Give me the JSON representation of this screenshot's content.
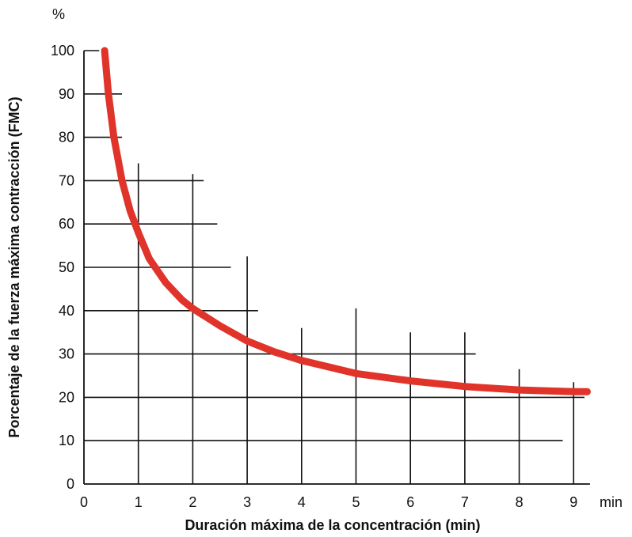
{
  "chart_data": {
    "type": "line",
    "xlabel": "Duración máxima de la concentración (min)",
    "ylabel": "Porcentaje de la fuerza máxima contracción (FMC)",
    "x_unit": "min",
    "y_unit": "%",
    "xlim": [
      0,
      9.3
    ],
    "ylim": [
      0,
      100
    ],
    "x_ticks": [
      "0",
      "1",
      "2",
      "3",
      "4",
      "5",
      "6",
      "7",
      "8",
      "9"
    ],
    "y_ticks": [
      "0",
      "10",
      "20",
      "30",
      "40",
      "50",
      "60",
      "70",
      "80",
      "90",
      "100"
    ],
    "line_color": "#e0342b",
    "series": [
      {
        "x": [
          0.38,
          0.45,
          0.55,
          0.7,
          0.85,
          1.0,
          1.2,
          1.5,
          1.8,
          2.0,
          2.5,
          3.0,
          3.5,
          4.0,
          4.5,
          5.0,
          6.0,
          7.0,
          8.0,
          9.0,
          9.25
        ],
        "y": [
          100,
          90,
          80,
          70,
          63,
          58,
          52,
          46.5,
          42.5,
          40.5,
          36.5,
          33,
          30.5,
          28.5,
          27,
          25.5,
          23.8,
          22.5,
          21.7,
          21.3,
          21.3
        ]
      }
    ],
    "grid_segments": {
      "horizontal": [
        {
          "y": 10,
          "x_end": 8.8
        },
        {
          "y": 20,
          "x_end": 9.2
        },
        {
          "y": 30,
          "x_end": 7.2
        },
        {
          "y": 40,
          "x_end": 3.2
        },
        {
          "y": 50,
          "x_end": 2.7
        },
        {
          "y": 60,
          "x_end": 2.45
        },
        {
          "y": 70,
          "x_end": 2.2
        },
        {
          "y": 80,
          "x_end": 0.7
        },
        {
          "y": 90,
          "x_end": 0.7
        }
      ],
      "vertical": [
        {
          "x": 1,
          "y_end": 74
        },
        {
          "x": 2,
          "y_end": 71.5
        },
        {
          "x": 3,
          "y_end": 52.5
        },
        {
          "x": 4,
          "y_end": 36
        },
        {
          "x": 5,
          "y_end": 40.5
        },
        {
          "x": 6,
          "y_end": 35
        },
        {
          "x": 7,
          "y_end": 35
        },
        {
          "x": 8,
          "y_end": 26.5
        },
        {
          "x": 9,
          "y_end": 23.5
        }
      ]
    }
  }
}
